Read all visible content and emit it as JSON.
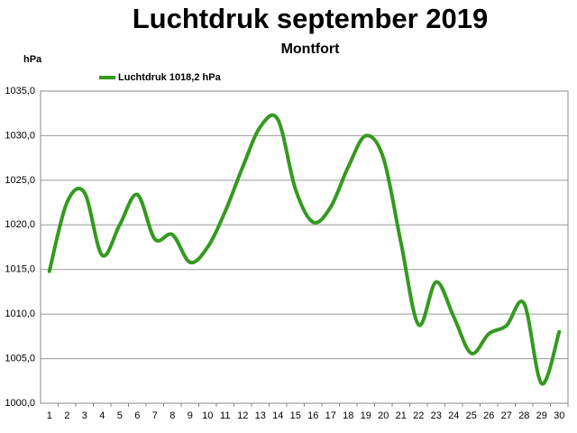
{
  "chart_data": {
    "type": "line",
    "title": "Luchtdruk september 2019",
    "subtitle": "Montfort",
    "y_label": "hPa",
    "categories": [
      "1",
      "2",
      "3",
      "4",
      "5",
      "6",
      "7",
      "8",
      "9",
      "10",
      "11",
      "12",
      "13",
      "14",
      "15",
      "16",
      "17",
      "18",
      "19",
      "20",
      "21",
      "22",
      "23",
      "24",
      "25",
      "26",
      "27",
      "28",
      "29",
      "30"
    ],
    "series": [
      {
        "name": "Luchtdruk 1018,2 hPa",
        "color": "#339a1f",
        "values": [
          1014.8,
          1022.5,
          1023.6,
          1016.6,
          1020.0,
          1023.4,
          1018.4,
          1018.9,
          1015.8,
          1017.5,
          1021.5,
          1026.5,
          1031.0,
          1031.8,
          1024.0,
          1020.3,
          1022.0,
          1026.5,
          1030.0,
          1027.5,
          1018.0,
          1008.8,
          1013.6,
          1009.7,
          1005.6,
          1007.8,
          1008.7,
          1011.2,
          1002.2,
          1008.0
        ]
      }
    ],
    "ylim": [
      1000,
      1035
    ],
    "yticks": [
      {
        "value": 1000,
        "label": "1000,0"
      },
      {
        "value": 1005,
        "label": "1005,0"
      },
      {
        "value": 1010,
        "label": "1010,0"
      },
      {
        "value": 1015,
        "label": "1015,0"
      },
      {
        "value": 1020,
        "label": "1020,0"
      },
      {
        "value": 1025,
        "label": "1025,0"
      },
      {
        "value": 1030,
        "label": "1030,0"
      },
      {
        "value": 1035,
        "label": "1035,0"
      }
    ],
    "grid": true,
    "legend": "top-left"
  }
}
